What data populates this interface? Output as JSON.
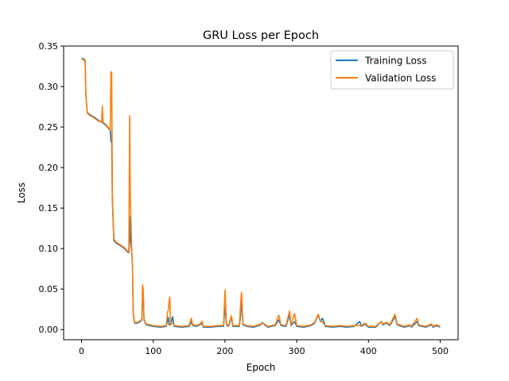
{
  "chart_data": {
    "type": "line",
    "title": "GRU Loss per Epoch",
    "xlabel": "Epoch",
    "ylabel": "Loss",
    "xlim": [
      -25,
      525
    ],
    "ylim": [
      -0.0125,
      0.35
    ],
    "xticks": [
      0,
      100,
      200,
      300,
      400,
      500
    ],
    "yticks": [
      0.0,
      0.05,
      0.1,
      0.15,
      0.2,
      0.25,
      0.3,
      0.35
    ],
    "xtick_labels": [
      "0",
      "100",
      "200",
      "300",
      "400",
      "500"
    ],
    "ytick_labels": [
      "0.00",
      "0.05",
      "0.10",
      "0.15",
      "0.20",
      "0.25",
      "0.30",
      "0.35"
    ],
    "grid": false,
    "legend_position": "top-right",
    "series": [
      {
        "name": "Training Loss",
        "color": "#1f77b4",
        "points": [
          [
            0,
            0.335
          ],
          [
            3,
            0.334
          ],
          [
            5,
            0.332
          ],
          [
            6,
            0.29
          ],
          [
            8,
            0.268
          ],
          [
            12,
            0.265
          ],
          [
            18,
            0.262
          ],
          [
            24,
            0.258
          ],
          [
            28,
            0.256
          ],
          [
            29,
            0.262
          ],
          [
            30,
            0.255
          ],
          [
            34,
            0.252
          ],
          [
            38,
            0.248
          ],
          [
            40,
            0.246
          ],
          [
            41,
            0.232
          ],
          [
            42,
            0.235
          ],
          [
            43,
            0.16
          ],
          [
            45,
            0.11
          ],
          [
            48,
            0.107
          ],
          [
            55,
            0.103
          ],
          [
            60,
            0.1
          ],
          [
            64,
            0.096
          ],
          [
            66,
            0.095
          ],
          [
            67,
            0.14
          ],
          [
            68,
            0.11
          ],
          [
            70,
            0.095
          ],
          [
            71,
            0.08
          ],
          [
            72,
            0.02
          ],
          [
            74,
            0.008
          ],
          [
            78,
            0.008
          ],
          [
            82,
            0.01
          ],
          [
            84,
            0.012
          ],
          [
            85,
            0.035
          ],
          [
            86,
            0.045
          ],
          [
            87,
            0.012
          ],
          [
            90,
            0.006
          ],
          [
            100,
            0.004
          ],
          [
            110,
            0.003
          ],
          [
            118,
            0.004
          ],
          [
            120,
            0.012
          ],
          [
            121,
            0.015
          ],
          [
            122,
            0.006
          ],
          [
            124,
            0.006
          ],
          [
            127,
            0.016
          ],
          [
            129,
            0.004
          ],
          [
            140,
            0.003
          ],
          [
            150,
            0.004
          ],
          [
            153,
            0.01
          ],
          [
            155,
            0.005
          ],
          [
            160,
            0.004
          ],
          [
            165,
            0.006
          ],
          [
            168,
            0.008
          ],
          [
            170,
            0.003
          ],
          [
            180,
            0.003
          ],
          [
            190,
            0.004
          ],
          [
            198,
            0.004
          ],
          [
            200,
            0.03
          ],
          [
            202,
            0.006
          ],
          [
            205,
            0.004
          ],
          [
            209,
            0.015
          ],
          [
            211,
            0.004
          ],
          [
            220,
            0.004
          ],
          [
            222,
            0.02
          ],
          [
            223,
            0.044
          ],
          [
            225,
            0.006
          ],
          [
            230,
            0.004
          ],
          [
            240,
            0.003
          ],
          [
            250,
            0.006
          ],
          [
            252,
            0.009
          ],
          [
            255,
            0.006
          ],
          [
            260,
            0.003
          ],
          [
            270,
            0.005
          ],
          [
            275,
            0.012
          ],
          [
            278,
            0.005
          ],
          [
            285,
            0.004
          ],
          [
            290,
            0.018
          ],
          [
            292,
            0.005
          ],
          [
            297,
            0.01
          ],
          [
            300,
            0.004
          ],
          [
            310,
            0.003
          ],
          [
            320,
            0.005
          ],
          [
            325,
            0.008
          ],
          [
            330,
            0.018
          ],
          [
            333,
            0.01
          ],
          [
            336,
            0.014
          ],
          [
            340,
            0.004
          ],
          [
            350,
            0.003
          ],
          [
            360,
            0.004
          ],
          [
            370,
            0.003
          ],
          [
            380,
            0.004
          ],
          [
            388,
            0.01
          ],
          [
            390,
            0.004
          ],
          [
            395,
            0.007
          ],
          [
            400,
            0.003
          ],
          [
            410,
            0.003
          ],
          [
            418,
            0.01
          ],
          [
            420,
            0.006
          ],
          [
            425,
            0.008
          ],
          [
            430,
            0.005
          ],
          [
            437,
            0.016
          ],
          [
            440,
            0.006
          ],
          [
            450,
            0.003
          ],
          [
            458,
            0.005
          ],
          [
            460,
            0.003
          ],
          [
            468,
            0.01
          ],
          [
            470,
            0.005
          ],
          [
            480,
            0.003
          ],
          [
            488,
            0.006
          ],
          [
            490,
            0.003
          ],
          [
            495,
            0.005
          ],
          [
            500,
            0.003
          ]
        ]
      },
      {
        "name": "Validation Loss",
        "color": "#ff7f0e",
        "points": [
          [
            0,
            0.334
          ],
          [
            3,
            0.333
          ],
          [
            5,
            0.331
          ],
          [
            6,
            0.289
          ],
          [
            8,
            0.267
          ],
          [
            12,
            0.264
          ],
          [
            18,
            0.261
          ],
          [
            24,
            0.257
          ],
          [
            28,
            0.257
          ],
          [
            29,
            0.276
          ],
          [
            30,
            0.256
          ],
          [
            34,
            0.253
          ],
          [
            38,
            0.249
          ],
          [
            40,
            0.247
          ],
          [
            41,
            0.318
          ],
          [
            42,
            0.318
          ],
          [
            43,
            0.165
          ],
          [
            45,
            0.112
          ],
          [
            48,
            0.108
          ],
          [
            55,
            0.104
          ],
          [
            60,
            0.101
          ],
          [
            64,
            0.097
          ],
          [
            66,
            0.096
          ],
          [
            67,
            0.264
          ],
          [
            68,
            0.165
          ],
          [
            70,
            0.096
          ],
          [
            71,
            0.082
          ],
          [
            72,
            0.021
          ],
          [
            74,
            0.009
          ],
          [
            78,
            0.009
          ],
          [
            82,
            0.011
          ],
          [
            84,
            0.013
          ],
          [
            85,
            0.055
          ],
          [
            86,
            0.05
          ],
          [
            87,
            0.013
          ],
          [
            90,
            0.007
          ],
          [
            100,
            0.005
          ],
          [
            110,
            0.004
          ],
          [
            118,
            0.005
          ],
          [
            120,
            0.022
          ],
          [
            121,
            0.024
          ],
          [
            122,
            0.035
          ],
          [
            123,
            0.04
          ],
          [
            124,
            0.007
          ],
          [
            127,
            0.008
          ],
          [
            129,
            0.005
          ],
          [
            140,
            0.004
          ],
          [
            150,
            0.005
          ],
          [
            153,
            0.014
          ],
          [
            155,
            0.006
          ],
          [
            160,
            0.005
          ],
          [
            165,
            0.007
          ],
          [
            168,
            0.01
          ],
          [
            170,
            0.004
          ],
          [
            180,
            0.004
          ],
          [
            190,
            0.005
          ],
          [
            198,
            0.005
          ],
          [
            200,
            0.049
          ],
          [
            202,
            0.007
          ],
          [
            205,
            0.005
          ],
          [
            209,
            0.017
          ],
          [
            211,
            0.005
          ],
          [
            220,
            0.005
          ],
          [
            222,
            0.035
          ],
          [
            223,
            0.046
          ],
          [
            225,
            0.007
          ],
          [
            230,
            0.005
          ],
          [
            240,
            0.004
          ],
          [
            250,
            0.007
          ],
          [
            252,
            0.008
          ],
          [
            255,
            0.007
          ],
          [
            260,
            0.004
          ],
          [
            270,
            0.006
          ],
          [
            275,
            0.018
          ],
          [
            278,
            0.006
          ],
          [
            285,
            0.005
          ],
          [
            290,
            0.023
          ],
          [
            292,
            0.006
          ],
          [
            297,
            0.02
          ],
          [
            300,
            0.005
          ],
          [
            310,
            0.004
          ],
          [
            320,
            0.006
          ],
          [
            325,
            0.009
          ],
          [
            330,
            0.019
          ],
          [
            333,
            0.011
          ],
          [
            336,
            0.009
          ],
          [
            340,
            0.005
          ],
          [
            350,
            0.004
          ],
          [
            360,
            0.005
          ],
          [
            370,
            0.004
          ],
          [
            380,
            0.005
          ],
          [
            388,
            0.005
          ],
          [
            390,
            0.005
          ],
          [
            395,
            0.008
          ],
          [
            400,
            0.004
          ],
          [
            410,
            0.004
          ],
          [
            418,
            0.01
          ],
          [
            420,
            0.007
          ],
          [
            425,
            0.009
          ],
          [
            430,
            0.006
          ],
          [
            437,
            0.019
          ],
          [
            440,
            0.007
          ],
          [
            450,
            0.004
          ],
          [
            458,
            0.006
          ],
          [
            460,
            0.004
          ],
          [
            468,
            0.014
          ],
          [
            470,
            0.006
          ],
          [
            480,
            0.004
          ],
          [
            488,
            0.007
          ],
          [
            490,
            0.004
          ],
          [
            495,
            0.006
          ],
          [
            500,
            0.004
          ]
        ]
      }
    ]
  }
}
